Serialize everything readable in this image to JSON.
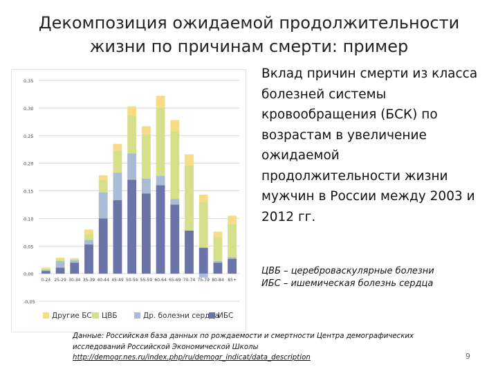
{
  "slide": {
    "title_lines": [
      "Декомпозиция ожидаемой продолжительности",
      "жизни по причинам смерти: пример"
    ],
    "description_lines": [
      "Вклад причин смерти из класса",
      "болезней системы",
      "кровообращения (БСК) по",
      "возрастам в увеличение",
      "ожидаемой",
      "продолжительности жизни",
      "мужчин в России между 2003 и",
      "2012 гг."
    ],
    "abbreviations": [
      "ЦВБ – цереброваскулярные болезни",
      "ИБС – ишемическая болезнь сердца"
    ],
    "source_lines": [
      "Данные: Российская база данных по рождаемости и смертности Центра демографических",
      "исследований Российской Экономической Школы"
    ],
    "source_link": "http://demogr.nes.ru/index.php/ru/demogr_indicat/data_description",
    "page_number": "9"
  },
  "chart_data": {
    "type": "bar",
    "stacked": true,
    "categories": [
      "0-24",
      "25-29",
      "30-34",
      "35-39",
      "40-44",
      "45-49",
      "50-54",
      "55-59",
      "60-64",
      "65-69",
      "70-74",
      "75-79",
      "80-84",
      "85+"
    ],
    "ylim": [
      -0.05,
      0.35
    ],
    "yticks": [
      -0.05,
      0.0,
      0.05,
      0.1,
      0.15,
      0.2,
      0.25,
      0.3,
      0.35
    ],
    "ytick_labels": [
      "-0,05",
      "0,00",
      "0,05",
      "0,10",
      "0,15",
      "0,20",
      "0,25",
      "0,30",
      "0,35"
    ],
    "grid": true,
    "legend_position": "bottom",
    "series": [
      {
        "name": "ИБС",
        "color": "#6b74a6",
        "values": [
          0.005,
          0.011,
          0.02,
          0.053,
          0.1,
          0.133,
          0.17,
          0.145,
          0.16,
          0.125,
          0.078,
          0.047,
          0.02,
          0.027
        ]
      },
      {
        "name": "Др. болезни сердца",
        "color": "#a8bcd6",
        "values": [
          0.002,
          0.012,
          0.004,
          0.008,
          0.047,
          0.05,
          0.048,
          0.027,
          0.017,
          0.01,
          0.0,
          -0.007,
          0.003,
          0.003
        ]
      },
      {
        "name": "ЦВБ",
        "color": "#d6df8a",
        "values": [
          0.002,
          0.004,
          0.002,
          0.01,
          0.023,
          0.04,
          0.068,
          0.08,
          0.123,
          0.123,
          0.118,
          0.083,
          0.043,
          0.06
        ]
      },
      {
        "name": "Другие БСК",
        "color": "#f6dd85",
        "values": [
          0.002,
          0.002,
          0.002,
          0.009,
          0.008,
          0.012,
          0.017,
          0.015,
          0.022,
          0.02,
          0.02,
          0.013,
          0.01,
          0.015
        ]
      }
    ],
    "legend_order": [
      "Другие БСК",
      "ЦВБ",
      "Др. болезни сердца",
      "ИБС"
    ]
  }
}
